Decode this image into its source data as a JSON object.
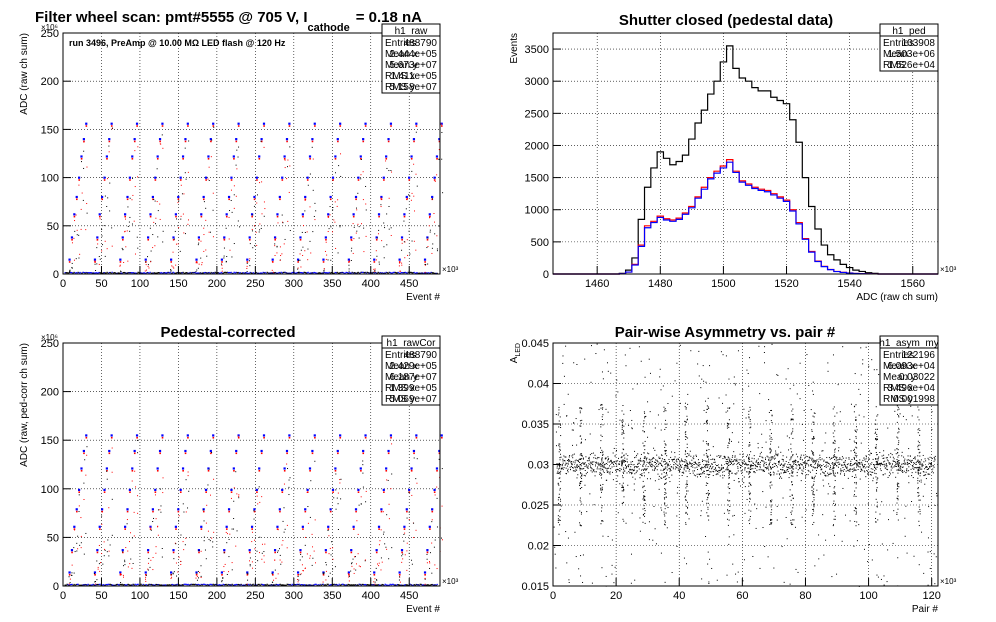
{
  "chart_data": [
    {
      "id": "raw",
      "type": "scatter",
      "title_main": "Filter wheel scan: pmt#5555 @   705 V, I",
      "title_sub": "cathode",
      "title_end": "= 0.18 nA",
      "annotation": "run 3496, PreAmp @ 10.00 MΩ LED flash @  120 Hz",
      "xlabel": "Event #",
      "ylabel": "ADC (raw ch sum)",
      "x_exponent": "×10³",
      "y_exponent": "×10⁶",
      "xlim": [
        0,
        490
      ],
      "ylim": [
        0,
        250
      ],
      "x_ticks": [
        0,
        50,
        100,
        150,
        200,
        250,
        300,
        350,
        400,
        450
      ],
      "y_ticks": [
        0,
        50,
        100,
        150,
        200,
        250
      ],
      "grid": true,
      "legend": "top-right",
      "marker_colors": [
        "#0000ff",
        "#ff0000",
        "#000000"
      ],
      "levels_blue": [
        1,
        15,
        38,
        62,
        80,
        100,
        122,
        140,
        156
      ],
      "levels_red": [
        1,
        15,
        38,
        62,
        80,
        100,
        122,
        140,
        156
      ],
      "step_period": 33,
      "stats": {
        "name": "h1_raw",
        "rows": [
          [
            "Entries",
            "488790"
          ],
          [
            "Mean x",
            "2.444e+05"
          ],
          [
            "Mean y",
            "5.673e+07"
          ],
          [
            "RMS x",
            "1.411e+05"
          ],
          [
            "RMS y",
            "5.158e+07"
          ]
        ]
      }
    },
    {
      "id": "ped",
      "type": "line",
      "title": "Shutter closed (pedestal data)",
      "xlabel": "ADC (raw ch sum)",
      "ylabel": "Events",
      "x_exponent": "×10³",
      "xlim": [
        1446,
        1568
      ],
      "ylim": [
        0,
        3750
      ],
      "x_ticks": [
        1460,
        1480,
        1500,
        1520,
        1540,
        1560
      ],
      "y_ticks": [
        0,
        500,
        1000,
        1500,
        2000,
        2500,
        3000,
        3500
      ],
      "grid": true,
      "legend": "top-right",
      "x": [
        1466,
        1468,
        1470,
        1472,
        1474,
        1476,
        1478,
        1480,
        1482,
        1484,
        1486,
        1488,
        1490,
        1492,
        1494,
        1496,
        1498,
        1500,
        1502,
        1504,
        1506,
        1508,
        1510,
        1512,
        1514,
        1516,
        1518,
        1520,
        1522,
        1524,
        1526,
        1528,
        1530,
        1532,
        1534,
        1536,
        1538,
        1540,
        1542,
        1544,
        1546,
        1548,
        1550
      ],
      "series": [
        {
          "color": "#000000",
          "values": [
            0,
            10,
            60,
            250,
            850,
            1350,
            1650,
            1900,
            1800,
            1700,
            1750,
            1850,
            2100,
            2350,
            2550,
            2800,
            3000,
            3300,
            3550,
            3200,
            3050,
            3000,
            2900,
            2850,
            2850,
            2750,
            2700,
            2650,
            2400,
            2050,
            1500,
            1050,
            700,
            450,
            300,
            220,
            150,
            100,
            60,
            40,
            20,
            10,
            0
          ]
        },
        {
          "color": "#ff0000",
          "values": [
            0,
            5,
            30,
            150,
            450,
            750,
            820,
            900,
            860,
            840,
            870,
            950,
            1050,
            1200,
            1350,
            1500,
            1600,
            1680,
            1780,
            1600,
            1450,
            1400,
            1350,
            1320,
            1300,
            1250,
            1200,
            1150,
            1000,
            800,
            550,
            350,
            200,
            120,
            70,
            40,
            25,
            15,
            8,
            4,
            2,
            1,
            0
          ]
        },
        {
          "color": "#0000ff",
          "values": [
            0,
            5,
            30,
            140,
            430,
            720,
            800,
            880,
            840,
            820,
            850,
            930,
            1030,
            1180,
            1320,
            1480,
            1570,
            1650,
            1740,
            1580,
            1430,
            1380,
            1330,
            1300,
            1280,
            1230,
            1180,
            1130,
            980,
            780,
            540,
            340,
            195,
            115,
            68,
            38,
            24,
            14,
            8,
            4,
            2,
            1,
            0
          ]
        }
      ],
      "stats": {
        "name": "h1_ped",
        "rows": [
          [
            "Entries",
            "103908"
          ],
          [
            "Mean",
            "1.503e+06"
          ],
          [
            "RMS",
            "1.526e+04"
          ]
        ]
      }
    },
    {
      "id": "rawCor",
      "type": "scatter",
      "title": "Pedestal-corrected",
      "xlabel": "Event #",
      "ylabel": "ADC (raw, ped-corr ch sum)",
      "x_exponent": "×10³",
      "y_exponent": "×10⁶",
      "xlim": [
        0,
        490
      ],
      "ylim": [
        0,
        250
      ],
      "x_ticks": [
        0,
        50,
        100,
        150,
        200,
        250,
        300,
        350,
        400,
        450
      ],
      "y_ticks": [
        0,
        50,
        100,
        150,
        200,
        250
      ],
      "grid": true,
      "legend": "top-right",
      "marker_colors": [
        "#0000ff",
        "#ff0000",
        "#000000"
      ],
      "levels_blue": [
        0,
        14,
        37,
        61,
        79,
        99,
        121,
        139,
        155
      ],
      "levels_red": [
        0,
        14,
        37,
        61,
        79,
        99,
        121,
        139,
        155
      ],
      "step_period": 33,
      "stats": {
        "name": "h1_rawCor",
        "rows": [
          [
            "Entries",
            "488790"
          ],
          [
            "Mean x",
            "2.429e+05"
          ],
          [
            "Mean y",
            "6.187e+07"
          ],
          [
            "RMS x",
            "1.399e+05"
          ],
          [
            "RMS y",
            "5.069e+07"
          ]
        ]
      }
    },
    {
      "id": "asym",
      "type": "scatter",
      "title": "Pair-wise Asymmetry vs. pair #",
      "xlabel": "Pair #",
      "ylabel": "A",
      "ylabel_sub": "LED",
      "x_exponent": "×10³",
      "xlim": [
        0,
        122
      ],
      "ylim": [
        0.015,
        0.045
      ],
      "x_ticks": [
        0,
        20,
        40,
        60,
        80,
        100,
        120
      ],
      "y_ticks": [
        0.015,
        0.02,
        0.025,
        0.03,
        0.035,
        0.04,
        0.045
      ],
      "grid": true,
      "legend": "top-right",
      "band_center": 0.03,
      "band_halfwidth": 0.0015,
      "spike_period": 6.7,
      "stats": {
        "name": "h1_asym_my",
        "rows": [
          [
            "Entries",
            "122196"
          ],
          [
            "Mean x",
            "6.093e+04"
          ],
          [
            "Mean y",
            "0.03022"
          ],
          [
            "RMS x",
            "3.496e+04"
          ],
          [
            "RMS y",
            "0.001998"
          ]
        ]
      }
    }
  ]
}
